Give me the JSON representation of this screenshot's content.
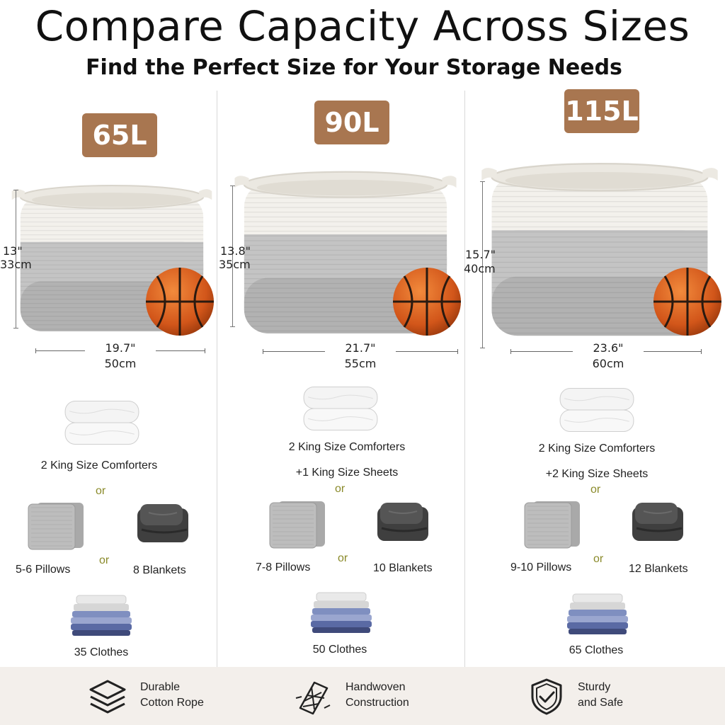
{
  "header": {
    "title": "Compare Capacity Across Sizes",
    "subtitle": "Find the Perfect Size for Your Storage Needs"
  },
  "sizes": [
    {
      "badge": "65L",
      "height_in": "13\"",
      "height_cm": "33cm",
      "width_in": "19.7\"",
      "width_cm": "50cm",
      "comforters": "2 King Size Comforters",
      "sheets": "",
      "or1": "or",
      "or2": "or",
      "pillows": "5-6 Pillows",
      "blankets": "8 Blankets",
      "clothes": "35 Clothes"
    },
    {
      "badge": "90L",
      "height_in": "13.8\"",
      "height_cm": "35cm",
      "width_in": "21.7\"",
      "width_cm": "55cm",
      "comforters": "2 King Size Comforters",
      "sheets": "+1 King Size Sheets",
      "or1": "or",
      "or2": "or",
      "pillows": "7-8 Pillows",
      "blankets": "10 Blankets",
      "clothes": "50 Clothes"
    },
    {
      "badge": "115L",
      "height_in": "15.7\"",
      "height_cm": "40cm",
      "width_in": "23.6\"",
      "width_cm": "60cm",
      "comforters": "2 King Size Comforters",
      "sheets": "+2 King Size Sheets",
      "or1": "or",
      "or2": "or",
      "pillows": "9-10 Pillows",
      "blankets": "12 Blankets",
      "clothes": "65 Clothes"
    }
  ],
  "features": [
    {
      "line1": "Durable",
      "line2": "Cotton Rope",
      "icon": "layers-icon"
    },
    {
      "line1": "Handwoven",
      "line2": "Construction",
      "icon": "woven-rope-icon"
    },
    {
      "line1": "Sturdy",
      "line2": "and Safe",
      "icon": "shield-check-icon"
    }
  ],
  "colors": {
    "badge": "#a87650",
    "rope_white": "#f3f1ec",
    "rope_gray": "#b7b7b7",
    "basketball": "#d8611f",
    "footer_bg": "#f3efeb"
  }
}
